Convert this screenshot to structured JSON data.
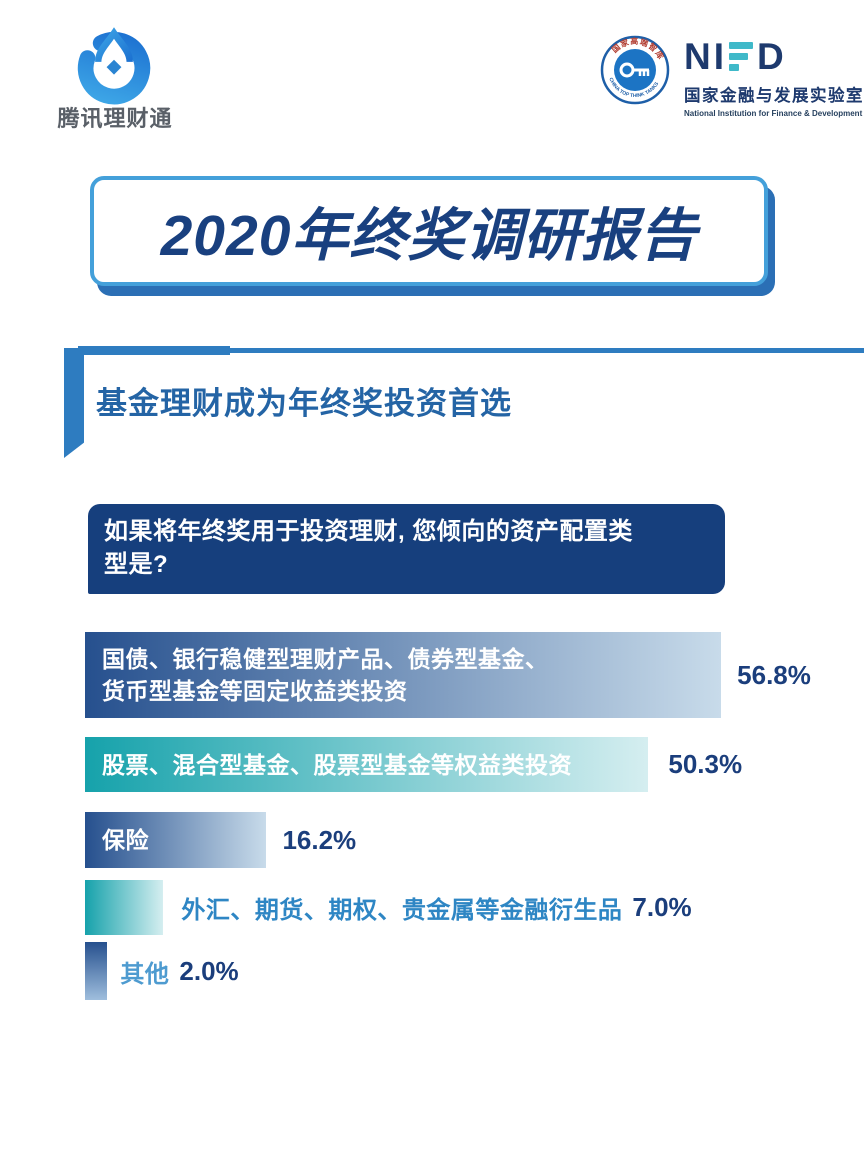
{
  "header": {
    "tencent": {
      "wordmark": "腾讯理财通"
    },
    "nifd": {
      "letter_n": "N",
      "letter_i": "I",
      "letter_d": "D",
      "cn_name": "国家金融与发展实验室",
      "en_name": "National Institution for Finance & Development",
      "badge_top_text": "国家高端智库",
      "badge_bottom_text": "CHINA TOP THINK TANKS"
    }
  },
  "title_banner": {
    "text": "2020年终奖调研报告"
  },
  "section_heading": {
    "text": "基金理财成为年终奖投资首选"
  },
  "question_box": {
    "full_text": "如果将年终奖用于投资理财, 您倾向的资产配置类型是?",
    "line1": "如果将年终奖用于投资理财, 您倾向的资产配置类",
    "line2": "型是?"
  },
  "chart_data": {
    "type": "bar",
    "orientation": "horizontal",
    "title": "如果将年终奖用于投资理财, 您倾向的资产配置类型是?",
    "categories": [
      "国债、银行稳健型理财产品、债券型基金、货币型基金等固定收益类投资",
      "股票、混合型基金、股票型基金等权益类投资",
      "保险",
      "外汇、期货、期权、贵金属等金融衍生品",
      "其他"
    ],
    "values": [
      56.8,
      50.3,
      16.2,
      7.0,
      2.0
    ],
    "value_labels": [
      "56.8%",
      "50.3%",
      "16.2%",
      "7.0%",
      "2.0%"
    ],
    "bar1_line1": "国债、银行稳健型理财产品、债券型基金、",
    "bar1_line2": "货币型基金等固定收益类投资",
    "bar3_category": "外汇、期货、期权、贵金属等金融衍生品",
    "bar4_category": "其他",
    "xlim": [
      0,
      60
    ],
    "grid": false,
    "legend": "none",
    "label_position_by_bar": [
      "inside",
      "inside",
      "inside",
      "outside",
      "outside"
    ]
  },
  "colors": {
    "navy_text": "#1b3e7c",
    "banner_border": "#44a0da",
    "banner_shadow": "#2b6fb5",
    "banner_title": "#19407f",
    "question_bg": "#163f7d",
    "heading_text": "#2464a5",
    "bracket_blue": "#2e7cc0",
    "bar_blue_start": "#26508e",
    "bar_blue_end": "#c8dbea",
    "bar_teal_start": "#16a2ab",
    "bar_teal_end": "#d5eef0",
    "outside_label_row4": "#2e86c4",
    "outside_label_row5": "#4e9bd0",
    "nifd_navy": "#1e3a6e",
    "nifd_teal": "#3fb9c9",
    "tencent_blue": "#2a84d2"
  }
}
